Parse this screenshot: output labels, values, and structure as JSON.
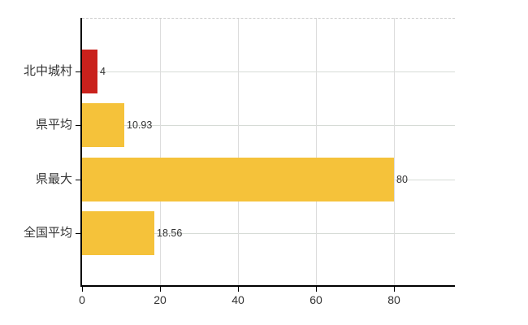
{
  "chart_data": {
    "type": "bar",
    "orientation": "horizontal",
    "title": "",
    "xlabel": "",
    "ylabel": "",
    "categories": [
      "北中城村",
      "県平均",
      "県最大",
      "全国平均"
    ],
    "values": [
      4,
      10.93,
      80,
      18.56
    ],
    "value_labels": [
      "4",
      "10.93",
      "80",
      "18.56"
    ],
    "bar_colors": [
      "#c9211c",
      "#f5c23a",
      "#f5c23a",
      "#f5c23a"
    ],
    "highlight_color": "#c9211c",
    "default_bar_color": "#f5c23a",
    "xlim": [
      0,
      95.6
    ],
    "xticks": [
      0,
      20,
      40,
      60,
      80
    ],
    "xtick_labels": [
      "0",
      "20",
      "40",
      "60",
      "80"
    ],
    "grid": "on",
    "legend": "none",
    "colors": {
      "background": "#ffffff",
      "axis": "#000000",
      "vertical_gridline": "#dcdcdc",
      "horizontal_gridline": "#d6dbd6",
      "plot_border_top": "#cccccc",
      "tick_label": "#333333",
      "value_label": "#333333",
      "category_label": "#333333"
    }
  }
}
